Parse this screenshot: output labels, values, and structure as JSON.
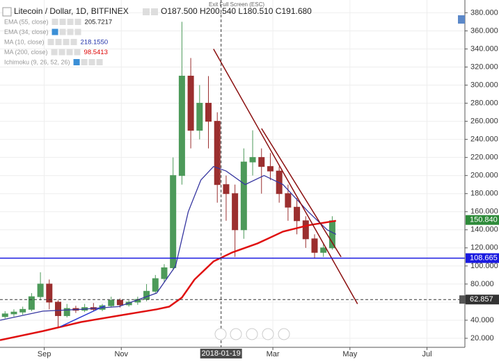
{
  "chart_data": {
    "type": "candlestick",
    "title": "Litecoin / Dollar, 1D, BITFINEX",
    "ohlc_header": "O187.500 H200.540 L180.510 C191.680",
    "fullscreen_hint": "Exit Full Screen (ESC)",
    "indicators": [
      {
        "name": "EMA (55, close)",
        "value": "205.7217",
        "color": "#222222"
      },
      {
        "name": "EMA (34, close)",
        "value": null,
        "color": "#222222"
      },
      {
        "name": "MA (10, close)",
        "value": "218.1550",
        "color": "#2233aa"
      },
      {
        "name": "MA (200, close)",
        "value": "98.5413",
        "color": "#dd0000"
      },
      {
        "name": "Ichimoku (9, 26, 52, 26)",
        "value": null,
        "color": "#222222"
      }
    ],
    "x": [
      0,
      7,
      14,
      21,
      28,
      35,
      42,
      49,
      56,
      63,
      70,
      77,
      84,
      91,
      98,
      105,
      112,
      119,
      126,
      133,
      140,
      147,
      154,
      161,
      168,
      175,
      182,
      189,
      196,
      203,
      210,
      217,
      224,
      231,
      238,
      245,
      252,
      259
    ],
    "open": [
      44,
      47,
      49,
      52,
      66,
      80,
      60,
      45,
      53,
      51,
      54,
      52,
      56,
      62,
      57,
      60,
      63,
      72,
      86,
      98,
      200,
      310,
      250,
      280,
      260,
      190,
      180,
      140,
      215,
      220,
      210,
      205,
      180,
      165,
      150,
      130,
      115,
      120
    ],
    "high": [
      50,
      52,
      55,
      70,
      93,
      85,
      62,
      58,
      56,
      58,
      59,
      58,
      66,
      64,
      62,
      66,
      80,
      90,
      102,
      220,
      370,
      330,
      300,
      310,
      270,
      200,
      190,
      230,
      250,
      230,
      225,
      210,
      190,
      175,
      155,
      135,
      125,
      155
    ],
    "low": [
      42,
      44,
      46,
      50,
      62,
      52,
      32,
      43,
      48,
      49,
      50,
      50,
      54,
      54,
      55,
      57,
      61,
      70,
      82,
      95,
      190,
      230,
      240,
      230,
      170,
      150,
      110,
      130,
      200,
      180,
      195,
      170,
      150,
      135,
      120,
      108,
      110,
      118
    ],
    "close": [
      47,
      49,
      52,
      66,
      80,
      60,
      45,
      53,
      51,
      54,
      52,
      56,
      62,
      57,
      60,
      63,
      72,
      86,
      98,
      200,
      310,
      250,
      280,
      260,
      190,
      180,
      140,
      215,
      220,
      210,
      205,
      180,
      165,
      150,
      130,
      115,
      120,
      150
    ],
    "up_color": "#4d9a5a",
    "down_color": "#9b2f2f",
    "series": [
      {
        "name": "MA (200, close)",
        "color": "#e01010",
        "width": 2.5,
        "x": [
          -4,
          30,
          60,
          90,
          120,
          130,
          140,
          150,
          165,
          180,
          200,
          220,
          240,
          262
        ],
        "values": [
          18,
          28,
          38,
          45,
          52,
          55,
          65,
          85,
          105,
          115,
          125,
          138,
          145,
          150
        ]
      },
      {
        "name": "EMA (55, close)",
        "color": "#3636a0",
        "width": 1.3,
        "x": [
          -4,
          30,
          60,
          90,
          120,
          135,
          145,
          155,
          165,
          175,
          190,
          205,
          220,
          240,
          255,
          262
        ],
        "values": [
          40,
          50,
          52,
          55,
          70,
          100,
          160,
          195,
          210,
          205,
          190,
          200,
          190,
          160,
          140,
          135
        ]
      }
    ],
    "trend_lines": [
      {
        "color": "#8b1010",
        "x": [
          165,
          279
        ],
        "values": [
          340,
          58
        ]
      },
      {
        "color": "#8b1010",
        "x": [
          203,
          266
        ],
        "values": [
          252,
          110
        ]
      },
      {
        "color": "#2a3ad0",
        "x": [
          44,
          79
        ],
        "values": [
          33,
          56
        ]
      }
    ],
    "price_lines": [
      {
        "value": 108.665,
        "label": "108.665",
        "color": "#1a1ae0",
        "style": "solid"
      },
      {
        "value": 62.857,
        "label": "62.857",
        "color": "#333333",
        "style": "dashed"
      }
    ],
    "last_price": {
      "value": 150.84,
      "label": "150.840",
      "color": "#2e8b3a"
    },
    "crosshair": {
      "x": 171,
      "label": "2018-01-19"
    },
    "xlim": [
      -4,
      364
    ],
    "ylim": [
      10,
      388
    ],
    "xticks": [
      {
        "value": 31,
        "label": "Sep"
      },
      {
        "value": 92,
        "label": "Nov"
      },
      {
        "value": 212,
        "label": "Mar"
      },
      {
        "value": 273,
        "label": "May"
      },
      {
        "value": 334,
        "label": "Jul"
      }
    ],
    "yticks": [
      {
        "value": 20,
        "label": "20.000"
      },
      {
        "value": 40,
        "label": "40.000"
      },
      {
        "value": 60,
        "label": "60.000"
      },
      {
        "value": 80,
        "label": "80.000"
      },
      {
        "value": 100,
        "label": "100.000"
      },
      {
        "value": 120,
        "label": "120.000"
      },
      {
        "value": 140,
        "label": "140.000"
      },
      {
        "value": 160,
        "label": "160.000"
      },
      {
        "value": 180,
        "label": "180.000"
      },
      {
        "value": 200,
        "label": "200.000"
      },
      {
        "value": 220,
        "label": "220.000"
      },
      {
        "value": 240,
        "label": "240.000"
      },
      {
        "value": 260,
        "label": "260.000"
      },
      {
        "value": 280,
        "label": "280.000"
      },
      {
        "value": 300,
        "label": "300.000"
      },
      {
        "value": 320,
        "label": "320.000"
      },
      {
        "value": 340,
        "label": "340.000"
      },
      {
        "value": 360,
        "label": "360.000"
      },
      {
        "value": 380,
        "label": "380.000"
      }
    ],
    "grid": true
  }
}
